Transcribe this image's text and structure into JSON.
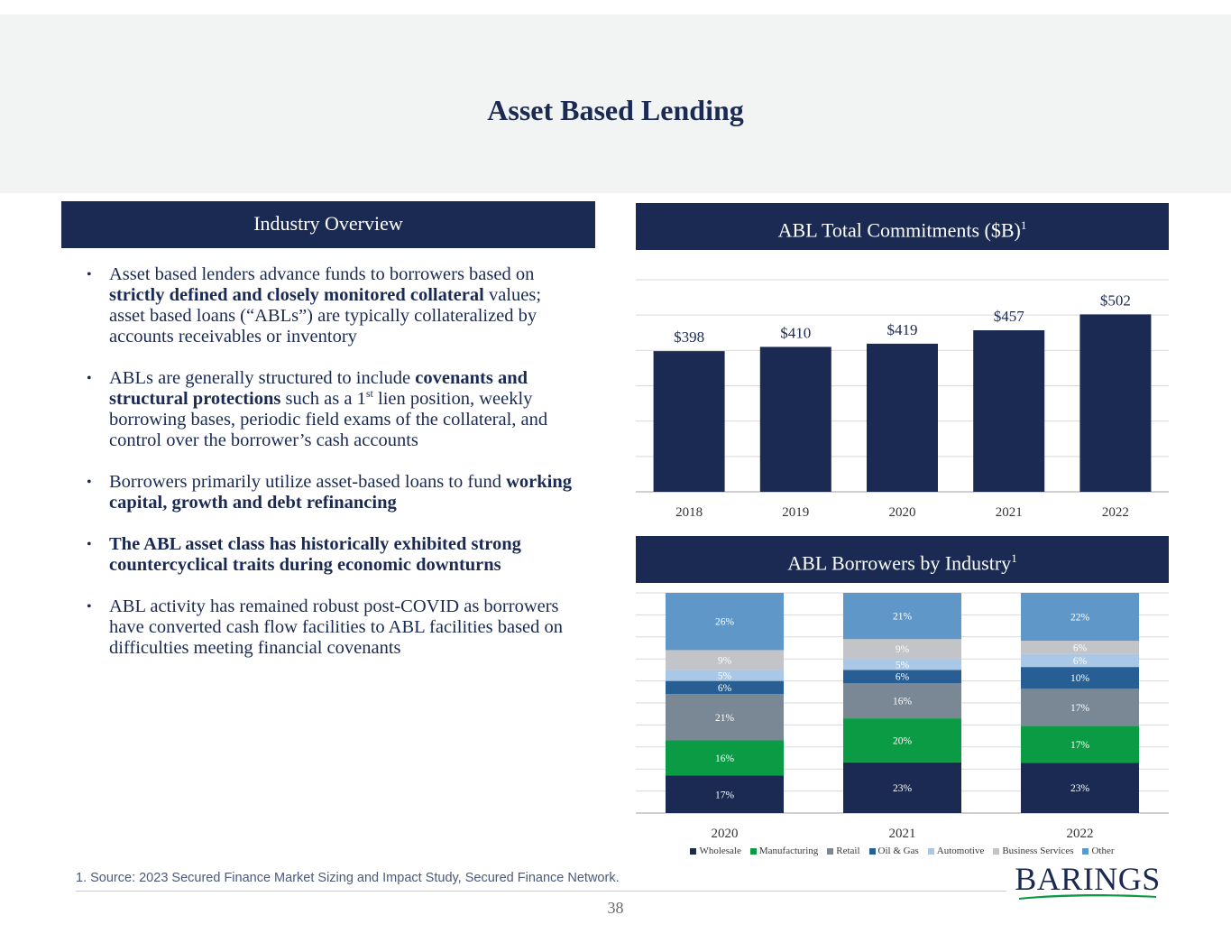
{
  "page": {
    "title": "Asset Based Lending",
    "page_number": "38",
    "footnote": "1. Source: 2023 Secured Finance Market Sizing and Impact Study, Secured Finance Network.",
    "logo_text": "BARINGS"
  },
  "overview": {
    "header": "Industry Overview",
    "bullets": [
      {
        "parts": [
          {
            "text": "Asset based lenders advance funds to borrowers based on "
          },
          {
            "text": "strictly defined and closely monitored collateral",
            "bold": true
          },
          {
            "text": " values; asset based loans (“ABLs”) are typically collateralized by accounts receivables or inventory"
          }
        ]
      },
      {
        "parts": [
          {
            "text": "ABLs are generally structured to include "
          },
          {
            "text": "covenants and structural protections",
            "bold": true
          },
          {
            "text": " such as a 1"
          },
          {
            "text": "st",
            "sup": true
          },
          {
            "text": " lien position, weekly borrowing bases, periodic field exams of the collateral, and control over the borrower’s cash accounts"
          }
        ]
      },
      {
        "parts": [
          {
            "text": "Borrowers primarily utilize asset-based loans to fund "
          },
          {
            "text": "working capital, growth and debt refinancing",
            "bold": true
          }
        ]
      },
      {
        "parts": [
          {
            "text": "The ABL asset class has historically exhibited strong countercyclical traits during economic downturns",
            "bold": true
          }
        ]
      },
      {
        "parts": [
          {
            "text": "ABL activity has remained robust post-COVID as borrowers have converted cash flow facilities to ABL facilities based on difficulties meeting financial covenants"
          }
        ]
      }
    ]
  },
  "commitments_header": {
    "text": "ABL Total Commitments ($B)",
    "sup": "1"
  },
  "industry_header": {
    "text": "ABL Borrowers by Industry",
    "sup": "1"
  },
  "chart_data": [
    {
      "type": "bar",
      "title": "ABL Total Commitments ($B)",
      "categories": [
        "2018",
        "2019",
        "2020",
        "2021",
        "2022"
      ],
      "values": [
        398,
        410,
        419,
        457,
        502
      ],
      "data_labels": [
        "$398",
        "$410",
        "$419",
        "$457",
        "$502"
      ],
      "ylim": [
        0,
        600
      ],
      "grid": true,
      "bar_color": "#1a2a52"
    },
    {
      "type": "bar",
      "stacked": true,
      "percent": true,
      "title": "ABL Borrowers by Industry",
      "categories": [
        "2020",
        "2021",
        "2022"
      ],
      "ylim": [
        0,
        100
      ],
      "grid": true,
      "legend_position": "bottom",
      "series": [
        {
          "name": "Wholesale",
          "color": "#1a2a52",
          "label_color": "#ffffff",
          "values": [
            17,
            23,
            23
          ]
        },
        {
          "name": "Manufacturing",
          "color": "#0c9b45",
          "label_color": "#ffffff",
          "values": [
            16,
            20,
            17
          ]
        },
        {
          "name": "Retail",
          "color": "#7a8794",
          "label_color": "#ffffff",
          "values": [
            21,
            16,
            17
          ]
        },
        {
          "name": "Oil & Gas",
          "color": "#275f94",
          "label_color": "#ffffff",
          "values": [
            6,
            6,
            10
          ]
        },
        {
          "name": "Automotive",
          "color": "#a9c8e8",
          "label_color": "#ffffff",
          "values": [
            5,
            5,
            6
          ]
        },
        {
          "name": "Business Services",
          "color": "#c2c4c7",
          "label_color": "#ffffff",
          "values": [
            9,
            9,
            6
          ]
        },
        {
          "name": "Other",
          "color": "#5f98c8",
          "label_color": "#ffffff",
          "values": [
            26,
            21,
            22
          ]
        }
      ]
    }
  ]
}
